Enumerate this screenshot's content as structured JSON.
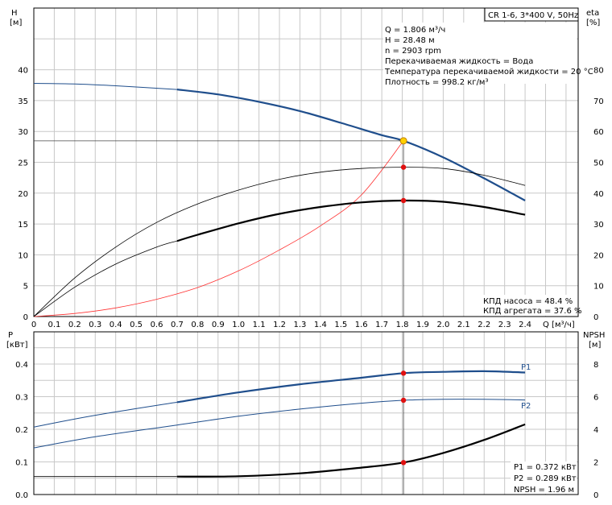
{
  "colors": {
    "head_curve": "#1f4e8c",
    "system_curve": "#ff3030",
    "duty_point_fill": "#ffd000",
    "point_marker": "#e01010",
    "grid": "#c8c8c8"
  },
  "chart_data": [
    {
      "type": "line",
      "title_box": "CR 1-6, 3*400 V, 50Hz",
      "y_left_label": [
        "H",
        "[м]"
      ],
      "y_right_label": [
        "eta",
        "[%]"
      ],
      "x_label": "Q [м³/ч]",
      "xlim": [
        0,
        2.6
      ],
      "ylim_left": [
        0,
        50
      ],
      "ylim_right": [
        0,
        100
      ],
      "x_ticks": [
        "0",
        "0.1",
        "0.2",
        "0.3",
        "0.4",
        "0.5",
        "0.6",
        "0.7",
        "0.8",
        "0.9",
        "1.0",
        "1.1",
        "1.2",
        "1.3",
        "1.4",
        "1.5",
        "1.6",
        "1.7",
        "1.8",
        "1.9",
        "2.0",
        "2.1",
        "2.2",
        "2.3",
        "2.4"
      ],
      "y_left_ticks": [
        "0",
        "5",
        "10",
        "15",
        "20",
        "25",
        "30",
        "35",
        "40"
      ],
      "y_right_ticks": [
        "0",
        "10",
        "20",
        "30",
        "40",
        "50",
        "60",
        "70",
        "80"
      ],
      "info": [
        "Q = 1.806 м³/ч",
        "H = 28.48 м",
        "n = 2903 rpm",
        "Перекачиваемая жидкость = Вода",
        "Температура перекачиваемой жидкости = 20 °C",
        "Плотность = 998.2 кг/м³"
      ],
      "efficiency_text": [
        "КПД насоса = 48.4 %",
        "КПД агрегата = 37.6 %"
      ],
      "duty_point": {
        "x": 1.806,
        "y": 28.48
      },
      "series": [
        {
          "axis": "left",
          "style": "head",
          "x": [
            0,
            0.2,
            0.4,
            0.7,
            0.9,
            1.1,
            1.3,
            1.5,
            1.7,
            1.806,
            2.0,
            2.2,
            2.4
          ],
          "values": [
            37.8,
            37.7,
            37.4,
            36.8,
            36.0,
            34.8,
            33.3,
            31.4,
            29.4,
            28.48,
            25.8,
            22.4,
            18.8
          ],
          "bold_from": 0.7
        },
        {
          "axis": "left",
          "style": "system",
          "x": [
            0,
            0.2,
            0.4,
            0.6,
            0.8,
            1.0,
            1.2,
            1.4,
            1.6,
            1.806
          ],
          "values": [
            0,
            0.5,
            1.4,
            2.8,
            4.7,
            7.4,
            10.8,
            14.7,
            19.7,
            28.48
          ]
        },
        {
          "axis": "right",
          "style": "thin",
          "x": [
            0,
            0.2,
            0.4,
            0.6,
            0.8,
            1.0,
            1.2,
            1.4,
            1.6,
            1.806,
            2.0,
            2.2,
            2.4
          ],
          "values": [
            0,
            12.5,
            22.5,
            30.5,
            36.5,
            41.0,
            44.5,
            46.8,
            48.0,
            48.4,
            48.0,
            45.8,
            42.5
          ]
        },
        {
          "axis": "right",
          "style": "bold_black",
          "x": [
            0,
            0.2,
            0.4,
            0.6,
            0.7,
            0.8,
            1.0,
            1.2,
            1.4,
            1.6,
            1.806,
            2.0,
            2.2,
            2.4
          ],
          "values": [
            0,
            9.5,
            17.0,
            22.5,
            24.5,
            26.5,
            30.2,
            33.3,
            35.5,
            37.0,
            37.6,
            37.2,
            35.5,
            33.0
          ],
          "bold_from": 0.7
        }
      ],
      "markers": [
        {
          "axis": "right",
          "x": 1.806,
          "y": 48.4
        },
        {
          "axis": "right",
          "x": 1.806,
          "y": 37.6
        }
      ]
    },
    {
      "type": "line",
      "y_left_label": [
        "P",
        "[кВт]"
      ],
      "y_right_label": [
        "NPSH",
        "[м]"
      ],
      "xlim": [
        0,
        2.6
      ],
      "ylim_left": [
        0,
        0.45
      ],
      "ylim_right": [
        0,
        9
      ],
      "y_left_ticks": [
        "0.0",
        "0.1",
        "0.2",
        "0.3",
        "0.4"
      ],
      "y_right_ticks": [
        "0",
        "2",
        "4",
        "6",
        "8"
      ],
      "series_labels": [
        "P1",
        "P2"
      ],
      "readout": [
        "P1 = 0.372 кВт",
        "P2 = 0.289 кВт",
        "NPSH = 1.96 м"
      ],
      "series": [
        {
          "name": "P1",
          "axis": "left",
          "style": "head",
          "x": [
            0,
            0.3,
            0.7,
            1.0,
            1.3,
            1.6,
            1.806,
            2.0,
            2.2,
            2.4
          ],
          "values": [
            0.207,
            0.243,
            0.283,
            0.313,
            0.338,
            0.358,
            0.372,
            0.376,
            0.378,
            0.374
          ],
          "bold_from": 0.7
        },
        {
          "name": "P2",
          "axis": "left",
          "style": "blue_thin",
          "x": [
            0,
            0.3,
            0.7,
            1.0,
            1.3,
            1.6,
            1.806,
            2.0,
            2.2,
            2.4
          ],
          "values": [
            0.143,
            0.177,
            0.213,
            0.24,
            0.262,
            0.28,
            0.289,
            0.292,
            0.292,
            0.29
          ]
        },
        {
          "name": "NPSH",
          "axis": "right",
          "style": "bold_black",
          "x": [
            0,
            0.7,
            1.0,
            1.3,
            1.6,
            1.806,
            2.0,
            2.2,
            2.4
          ],
          "values": [
            1.1,
            1.1,
            1.12,
            1.3,
            1.65,
            1.96,
            2.55,
            3.35,
            4.3
          ],
          "bold_from": 0.7
        }
      ],
      "markers": [
        {
          "axis": "left",
          "x": 1.806,
          "y": 0.372
        },
        {
          "axis": "left",
          "x": 1.806,
          "y": 0.289
        },
        {
          "axis": "right",
          "x": 1.806,
          "y": 1.96
        }
      ]
    }
  ]
}
